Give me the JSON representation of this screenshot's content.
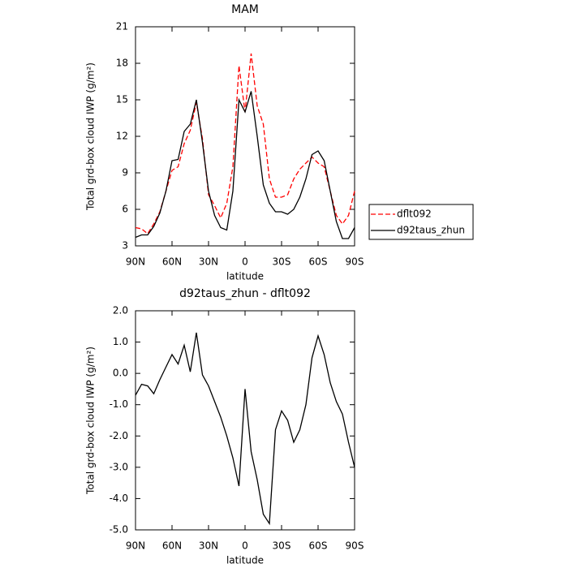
{
  "chart_data": [
    {
      "type": "line",
      "title": "MAM",
      "xlabel": "latitude",
      "ylabel": "Total grd-box cloud IWP (g/m²)",
      "x": [
        90,
        85,
        80,
        75,
        70,
        65,
        60,
        55,
        50,
        45,
        40,
        35,
        30,
        25,
        20,
        15,
        10,
        5,
        0,
        -5,
        -10,
        -15,
        -20,
        -25,
        -30,
        -35,
        -40,
        -45,
        -50,
        -55,
        -60,
        -65,
        -70,
        -75,
        -80,
        -85,
        -90
      ],
      "series": [
        {
          "name": "dflt092",
          "color": "#ff0000",
          "style": "dashed",
          "values": [
            4.5,
            4.4,
            4.0,
            4.8,
            5.8,
            7.5,
            9.2,
            9.5,
            11.4,
            12.5,
            14.8,
            11.8,
            7.2,
            6.3,
            5.3,
            6.5,
            9.5,
            17.8,
            14.0,
            18.8,
            14.5,
            13.0,
            8.5,
            7.0,
            7.0,
            7.2,
            8.5,
            9.3,
            9.8,
            10.3,
            9.8,
            9.5,
            7.5,
            5.5,
            4.8,
            5.5,
            7.5
          ]
        },
        {
          "name": "d92taus_zhun",
          "color": "#000000",
          "style": "solid",
          "values": [
            3.7,
            3.9,
            3.9,
            4.6,
            5.7,
            7.5,
            10.0,
            10.1,
            12.4,
            13.0,
            15.0,
            11.5,
            7.5,
            5.5,
            4.5,
            4.3,
            7.5,
            15.0,
            14.0,
            15.7,
            12.0,
            8.0,
            6.5,
            5.8,
            5.8,
            5.6,
            6.0,
            7.0,
            8.5,
            10.5,
            10.8,
            10.0,
            7.5,
            5.0,
            3.6,
            3.6,
            4.5
          ]
        }
      ],
      "xlim": [
        90,
        -90
      ],
      "xticks": [
        {
          "value": 90,
          "label": "90N"
        },
        {
          "value": 60,
          "label": "60N"
        },
        {
          "value": 30,
          "label": "30N"
        },
        0,
        {
          "value": -30,
          "label": "30S"
        },
        {
          "value": -60,
          "label": "60S"
        },
        {
          "value": -90,
          "label": "90S"
        }
      ],
      "ylim": [
        3,
        21
      ],
      "yticks": [
        3,
        6,
        9,
        12,
        15,
        18,
        21
      ],
      "legend": "right"
    },
    {
      "type": "line",
      "title": "d92taus_zhun - dflt092",
      "xlabel": "latitude",
      "ylabel": "Total grd-box cloud IWP (g/m²)",
      "x": [
        90,
        85,
        80,
        75,
        70,
        65,
        60,
        55,
        50,
        45,
        40,
        35,
        30,
        25,
        20,
        15,
        10,
        5,
        0,
        -5,
        -10,
        -15,
        -20,
        -25,
        -30,
        -35,
        -40,
        -45,
        -50,
        -55,
        -60,
        -65,
        -70,
        -75,
        -80,
        -85,
        -90
      ],
      "color": "#000000",
      "values": [
        -0.7,
        -0.35,
        -0.4,
        -0.65,
        -0.2,
        0.2,
        0.6,
        0.3,
        0.9,
        0.05,
        1.3,
        -0.05,
        -0.4,
        -0.9,
        -1.4,
        -2.0,
        -2.7,
        -3.6,
        -0.5,
        -2.5,
        -3.4,
        -4.5,
        -4.8,
        -1.8,
        -1.2,
        -1.5,
        -2.2,
        -1.8,
        -1.0,
        0.5,
        1.2,
        0.6,
        -0.3,
        -0.9,
        -1.3,
        -2.2,
        -3.0
      ],
      "xlim": [
        90,
        -90
      ],
      "xticks": [
        {
          "value": 90,
          "label": "90N"
        },
        {
          "value": 60,
          "label": "60N"
        },
        {
          "value": 30,
          "label": "30N"
        },
        0,
        {
          "value": -30,
          "label": "30S"
        },
        {
          "value": -60,
          "label": "60S"
        },
        {
          "value": -90,
          "label": "90S"
        }
      ],
      "ylim": [
        -5,
        2
      ],
      "yticks": [
        {
          "value": -5,
          "label": "-5.0"
        },
        {
          "value": -4,
          "label": "-4.0"
        },
        {
          "value": -3,
          "label": "-3.0"
        },
        {
          "value": -2,
          "label": "-2.0"
        },
        {
          "value": -1,
          "label": "-1.0"
        },
        {
          "value": 0,
          "label": "0.0"
        },
        {
          "value": 1,
          "label": "1.0"
        },
        {
          "value": 2,
          "label": "2.0"
        }
      ]
    }
  ]
}
